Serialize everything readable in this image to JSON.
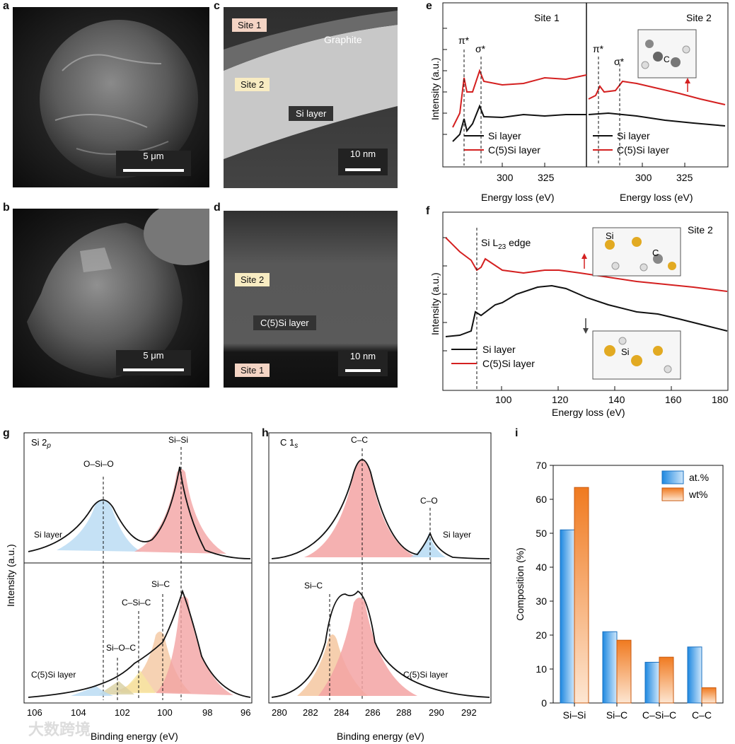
{
  "panels": {
    "a": {
      "label": "a",
      "scale": "5 μm"
    },
    "b": {
      "label": "b",
      "scale": "5 μm"
    },
    "c": {
      "label": "c",
      "site1": "Site 1",
      "site2": "Site 2",
      "graphite": "Graphite",
      "layer": "Si layer",
      "scale": "10 nm"
    },
    "d": {
      "label": "d",
      "site2": "Site 2",
      "site1": "Site 1",
      "layer": "C(5)Si layer",
      "scale": "10 nm"
    },
    "e": {
      "label": "e",
      "site1": "Site 1",
      "site2": "Site 2",
      "pi": "π*",
      "sigma": "σ*",
      "ylabel": "Intensity (a.u.)",
      "xlabel": "Energy loss (eV)",
      "xticks": [
        "300",
        "325"
      ],
      "legend": [
        "Si layer",
        "C(5)Si layer"
      ],
      "atom": "C"
    },
    "f": {
      "label": "f",
      "site": "Site 2",
      "edge": "Si L",
      "edge_sub": "23",
      "edge_tail": " edge",
      "ylabel": "Intensity (a.u.)",
      "xlabel": "Energy loss (eV)",
      "xticks": [
        "100",
        "120",
        "140",
        "160",
        "180"
      ],
      "legend": [
        "Si layer",
        "C(5)Si layer"
      ],
      "atom_si": "Si",
      "atom_c": "C"
    },
    "g": {
      "label": "g",
      "title": "Si 2",
      "title_sub": "p",
      "peaks": [
        "O–Si–O",
        "Si–Si",
        "Si–C",
        "C–Si–C",
        "Si–O–C"
      ],
      "top_layer": "Si layer",
      "bottom_layer": "C(5)Si layer",
      "ylabel": "Intensity (a.u.)",
      "xlabel": "Binding energy (eV)",
      "xticks": [
        "106",
        "104",
        "102",
        "100",
        "98",
        "96"
      ]
    },
    "h": {
      "label": "h",
      "title": "C 1",
      "title_sub": "s",
      "peaks": [
        "C–C",
        "C–O",
        "Si–C"
      ],
      "top_layer": "Si layer",
      "bottom_layer": "C(5)Si layer",
      "xlabel": "Binding energy (eV)",
      "xticks": [
        "280",
        "282",
        "284",
        "286",
        "288",
        "290",
        "292"
      ]
    },
    "i": {
      "label": "i"
    }
  },
  "watermark": "大数跨境",
  "colors": {
    "red": "#d42020",
    "black": "#111111",
    "blue": "#3aa0e8",
    "orange": "#f08a30"
  },
  "chart_data": [
    {
      "type": "bar",
      "panel": "i",
      "categories": [
        "Si–Si",
        "Si–C",
        "C–Si–C",
        "C–C"
      ],
      "series": [
        {
          "name": "at.%",
          "values": [
            51,
            21,
            12,
            16.5
          ]
        },
        {
          "name": "wt%",
          "values": [
            63.5,
            18.5,
            13.5,
            4.5
          ]
        }
      ],
      "ylabel": "Composition (%)",
      "ylim": [
        0,
        70
      ],
      "yticks": [
        0,
        10,
        20,
        30,
        40,
        50,
        60,
        70
      ],
      "legend": "top-right"
    }
  ]
}
